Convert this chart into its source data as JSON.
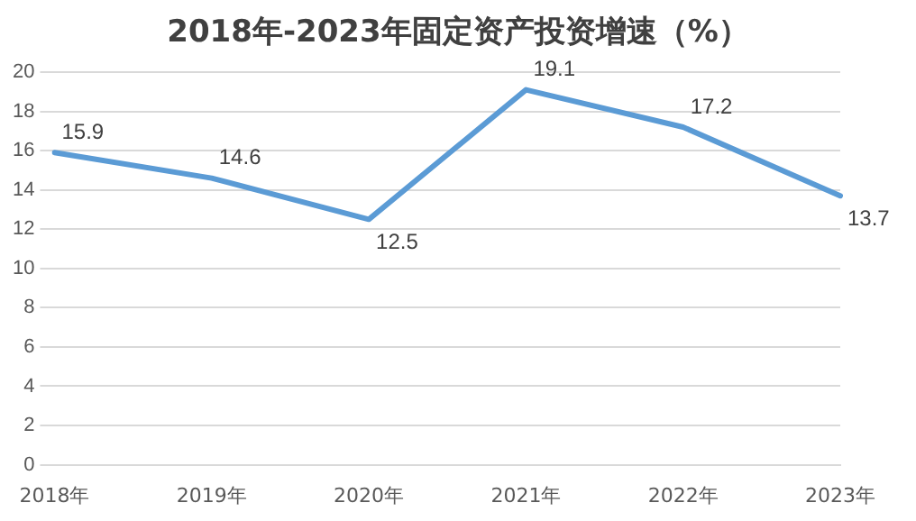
{
  "chart_data": {
    "type": "line",
    "title": "2018年-2023年固定资产投资增速（%）",
    "categories": [
      "2018年",
      "2019年",
      "2020年",
      "2021年",
      "2022年",
      "2023年"
    ],
    "series": [
      {
        "color": "#5b9bd5",
        "values": [
          15.9,
          14.6,
          12.5,
          19.1,
          17.2,
          13.7
        ]
      }
    ],
    "ylim": [
      0,
      20
    ],
    "yticks": [
      0,
      2,
      4,
      6,
      8,
      10,
      12,
      14,
      16,
      18,
      20
    ],
    "grid": "y",
    "legend": false,
    "marker": "none",
    "line_style": "solid",
    "data_labels": true
  }
}
